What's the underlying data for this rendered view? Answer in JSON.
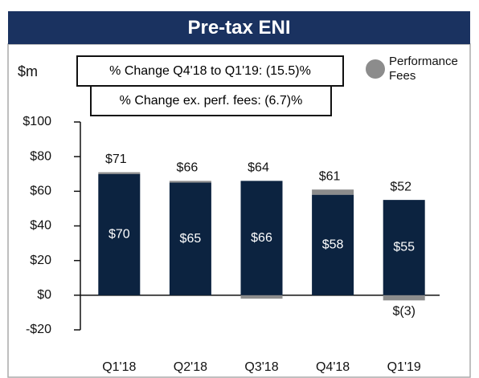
{
  "chart_data": {
    "type": "stacked_bar",
    "title": "Pre-tax ENI",
    "y_label": "$m",
    "annotations": [
      "% Change Q4'18 to Q1'19: (15.5)%",
      "% Change ex. perf. fees: (6.7)%"
    ],
    "categories": [
      "Q1'18",
      "Q2'18",
      "Q3'18",
      "Q4'18",
      "Q1'19"
    ],
    "series": [
      {
        "color": "#0c2340",
        "values": [
          70,
          65,
          66,
          58,
          55
        ],
        "value_labels": [
          "$70",
          "$65",
          "$66",
          "$58",
          "$55"
        ]
      },
      {
        "name": "Performance Fees",
        "color": "#8c8c8c",
        "values": [
          1,
          1,
          -2,
          3,
          -3
        ],
        "value_labels": [
          null,
          null,
          null,
          null,
          "$(3)"
        ]
      }
    ],
    "total_labels": [
      "$71",
      "$66",
      "$64",
      "$61",
      "$52"
    ],
    "ylim": [
      -20,
      100
    ],
    "yticks": [
      {
        "value": -20,
        "label": "-$20"
      },
      {
        "value": 0,
        "label": "$0"
      },
      {
        "value": 20,
        "label": "$20"
      },
      {
        "value": 40,
        "label": "$40"
      },
      {
        "value": 60,
        "label": "$60"
      },
      {
        "value": 80,
        "label": "$80"
      },
      {
        "value": 100,
        "label": "$100"
      }
    ],
    "legend": "top-right"
  }
}
